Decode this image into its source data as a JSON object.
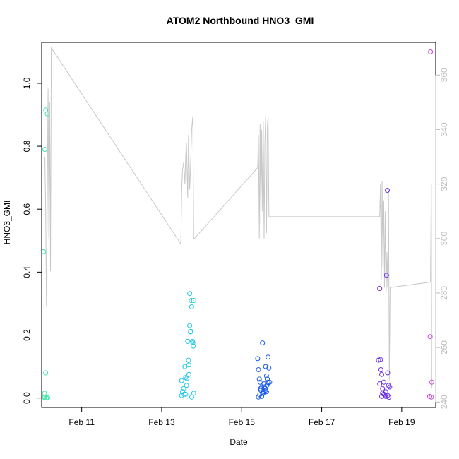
{
  "chart_data": {
    "type": "scatter",
    "title": "ATOM2 Northbound HNO3_GMI",
    "xlabel": "Date",
    "ylabel": "HNO3_GMI",
    "xlim": [
      10.0,
      19.85
    ],
    "ylim": [
      -0.03,
      1.13
    ],
    "y2lim": [
      238,
      372
    ],
    "x_ticks": [
      {
        "value": 11,
        "label": "Feb 11"
      },
      {
        "value": 13,
        "label": "Feb 13"
      },
      {
        "value": 15,
        "label": "Feb 15"
      },
      {
        "value": 17,
        "label": "Feb 17"
      },
      {
        "value": 19,
        "label": "Feb 19"
      }
    ],
    "y_ticks": [
      {
        "value": 0.0,
        "label": "0.0"
      },
      {
        "value": 0.2,
        "label": "0.2"
      },
      {
        "value": 0.4,
        "label": "0.4"
      },
      {
        "value": 0.6,
        "label": "0.6"
      },
      {
        "value": 0.8,
        "label": "0.8"
      },
      {
        "value": 1.0,
        "label": "1.0"
      }
    ],
    "y2_ticks": [
      {
        "value": 240,
        "label": "240"
      },
      {
        "value": 260,
        "label": "260"
      },
      {
        "value": 280,
        "label": "280"
      },
      {
        "value": 300,
        "label": "300"
      },
      {
        "value": 320,
        "label": "320"
      },
      {
        "value": 340,
        "label": "340"
      },
      {
        "value": 360,
        "label": "360"
      }
    ],
    "grid": false,
    "line_color": "#c8c8c8",
    "line": [
      [
        10.08,
        330
      ],
      [
        10.1,
        310
      ],
      [
        10.12,
        275
      ],
      [
        10.14,
        312
      ],
      [
        10.16,
        355
      ],
      [
        10.18,
        300
      ],
      [
        10.2,
        350
      ],
      [
        10.22,
        288
      ],
      [
        10.24,
        370
      ],
      [
        13.48,
        298
      ],
      [
        13.5,
        318
      ],
      [
        13.52,
        325
      ],
      [
        13.55,
        328
      ],
      [
        13.58,
        320
      ],
      [
        13.6,
        330
      ],
      [
        13.62,
        335
      ],
      [
        13.65,
        315
      ],
      [
        13.67,
        338
      ],
      [
        13.7,
        318
      ],
      [
        13.72,
        325
      ],
      [
        13.75,
        340
      ],
      [
        13.78,
        345
      ],
      [
        13.8,
        300
      ],
      [
        13.82,
        300
      ],
      [
        15.4,
        326
      ],
      [
        15.42,
        338
      ],
      [
        15.44,
        300
      ],
      [
        15.46,
        342
      ],
      [
        15.48,
        305
      ],
      [
        15.5,
        340
      ],
      [
        15.52,
        310
      ],
      [
        15.54,
        343
      ],
      [
        15.56,
        300
      ],
      [
        15.58,
        335
      ],
      [
        15.6,
        345
      ],
      [
        15.62,
        302
      ],
      [
        15.64,
        340
      ],
      [
        15.66,
        345
      ],
      [
        15.68,
        308
      ],
      [
        15.7,
        308
      ],
      [
        18.45,
        308
      ],
      [
        18.47,
        320
      ],
      [
        18.49,
        285
      ],
      [
        18.51,
        321
      ],
      [
        18.53,
        290
      ],
      [
        18.55,
        314
      ],
      [
        18.57,
        282
      ],
      [
        18.59,
        310
      ],
      [
        18.61,
        280
      ],
      [
        18.63,
        295
      ],
      [
        18.65,
        282
      ],
      [
        18.67,
        318
      ],
      [
        18.69,
        248
      ],
      [
        18.71,
        282
      ],
      [
        19.72,
        284
      ],
      [
        19.74,
        320
      ],
      [
        19.75,
        245
      ]
    ],
    "series": [
      {
        "color": "#3ee8a8",
        "points": [
          [
            10.05,
            0.465
          ],
          [
            10.08,
            0.79
          ],
          [
            10.1,
            0.915
          ],
          [
            10.14,
            0.903
          ],
          [
            10.1,
            0.08
          ],
          [
            10.07,
            0.015
          ],
          [
            10.08,
            0.003
          ],
          [
            10.12,
            0.0
          ],
          [
            10.15,
            0.001
          ],
          [
            10.06,
            0.002
          ]
        ]
      },
      {
        "color": "#1fc8e8",
        "points": [
          [
            13.5,
            0.055
          ],
          [
            13.52,
            0.02
          ],
          [
            13.55,
            0.03
          ],
          [
            13.56,
            0.012
          ],
          [
            13.58,
            0.1
          ],
          [
            13.6,
            0.065
          ],
          [
            13.62,
            0.04
          ],
          [
            13.63,
            0.062
          ],
          [
            13.65,
            0.18
          ],
          [
            13.67,
            0.12
          ],
          [
            13.68,
            0.105
          ],
          [
            13.7,
            0.332
          ],
          [
            13.7,
            0.23
          ],
          [
            13.72,
            0.21
          ],
          [
            13.73,
            0.212
          ],
          [
            13.74,
            0.31
          ],
          [
            13.75,
            0.29
          ],
          [
            13.77,
            0.18
          ],
          [
            13.79,
            0.165
          ],
          [
            13.8,
            0.31
          ],
          [
            13.78,
            0.175
          ],
          [
            13.75,
            0.003
          ],
          [
            13.8,
            0.015
          ],
          [
            13.5,
            0.008
          ],
          [
            13.6,
            0.012
          ],
          [
            13.68,
            0.075
          ]
        ]
      },
      {
        "color": "#1a5ae8",
        "points": [
          [
            15.4,
            0.125
          ],
          [
            15.42,
            0.09
          ],
          [
            15.44,
            0.06
          ],
          [
            15.46,
            0.05
          ],
          [
            15.48,
            0.025
          ],
          [
            15.5,
            0.035
          ],
          [
            15.52,
            0.175
          ],
          [
            15.54,
            0.015
          ],
          [
            15.56,
            0.045
          ],
          [
            15.58,
            0.03
          ],
          [
            15.6,
            0.1
          ],
          [
            15.62,
            0.07
          ],
          [
            15.64,
            0.06
          ],
          [
            15.66,
            0.13
          ],
          [
            15.68,
            0.095
          ],
          [
            15.7,
            0.05
          ],
          [
            15.45,
            0.01
          ],
          [
            15.5,
            0.005
          ],
          [
            15.55,
            0.02
          ],
          [
            15.6,
            0.025
          ],
          [
            15.63,
            0.04
          ],
          [
            15.42,
            0.003
          ],
          [
            15.47,
            0.03
          ],
          [
            15.52,
            0.015
          ],
          [
            15.57,
            0.035
          ],
          [
            15.62,
            0.02
          ],
          [
            15.65,
            0.05
          ],
          [
            15.67,
            0.048
          ]
        ]
      },
      {
        "color": "#6a30e8",
        "points": [
          [
            18.42,
            0.12
          ],
          [
            18.45,
            0.348
          ],
          [
            18.47,
            0.122
          ],
          [
            18.48,
            0.09
          ],
          [
            18.5,
            0.075
          ],
          [
            18.52,
            0.03
          ],
          [
            18.55,
            0.05
          ],
          [
            18.58,
            0.01
          ],
          [
            18.6,
            0.005
          ],
          [
            18.62,
            0.39
          ],
          [
            18.64,
            0.66
          ],
          [
            18.65,
            0.08
          ],
          [
            18.67,
            0.04
          ],
          [
            18.7,
            0.035
          ],
          [
            18.5,
            0.005
          ],
          [
            18.55,
            0.012
          ],
          [
            18.6,
            0.02
          ],
          [
            18.65,
            0.008
          ],
          [
            18.68,
            0.002
          ],
          [
            18.45,
            0.045
          ],
          [
            18.52,
            0.015
          ]
        ]
      },
      {
        "color": "#d040e0",
        "points": [
          [
            19.72,
            1.1
          ],
          [
            19.71,
            0.195
          ],
          [
            19.75,
            0.05
          ],
          [
            19.74,
            0.003
          ],
          [
            19.7,
            0.005
          ]
        ]
      }
    ]
  }
}
